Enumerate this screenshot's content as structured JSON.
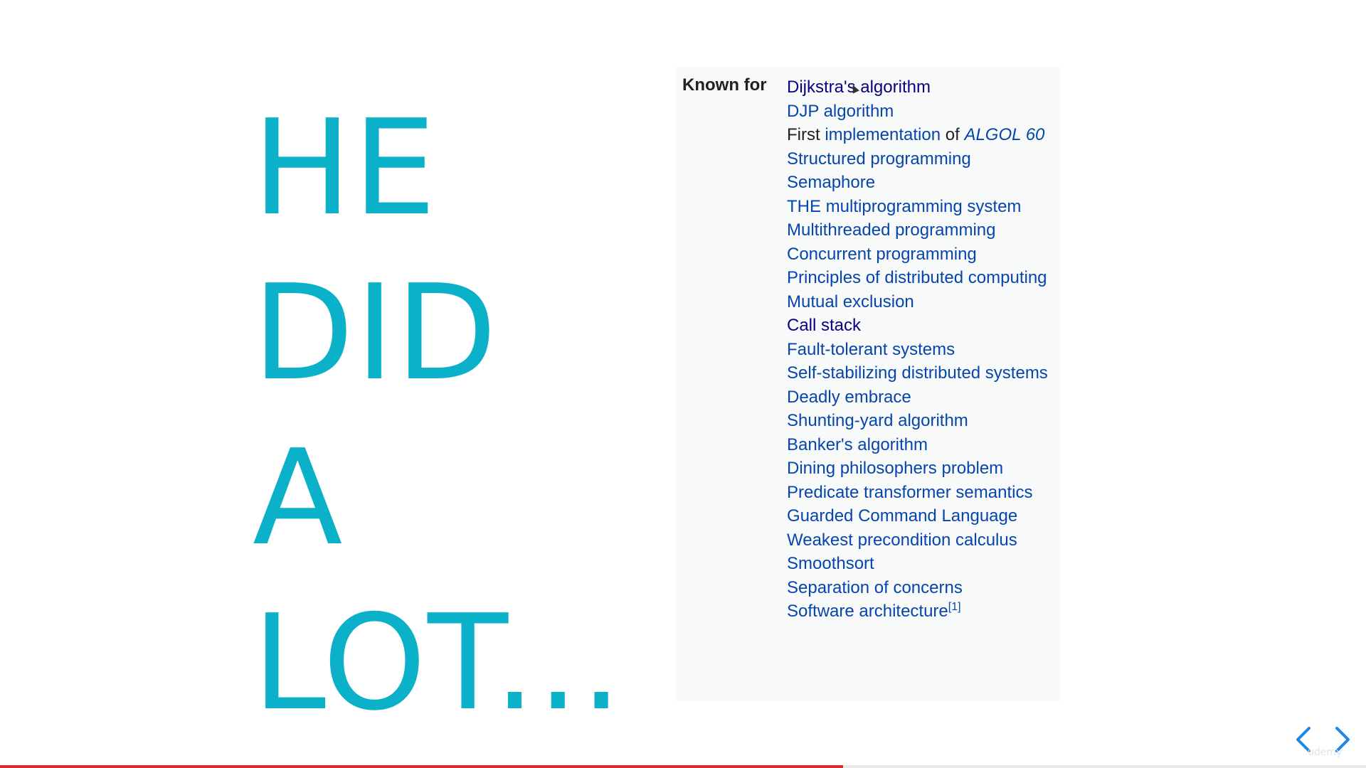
{
  "slide": {
    "big_text_lines": [
      "HE",
      "DID",
      "A",
      "LOT..."
    ]
  },
  "infobox": {
    "label": "Known for",
    "items": [
      {
        "text": "Dijkstra's algorithm",
        "style": "visited"
      },
      {
        "text": "DJP algorithm",
        "style": "link"
      },
      {
        "text_parts": [
          {
            "text": "First ",
            "style": "plain"
          },
          {
            "text": "implementation",
            "style": "link"
          },
          {
            "text": " of ",
            "style": "plain"
          },
          {
            "text": "ALGOL 60",
            "style": "link-italic"
          }
        ]
      },
      {
        "text": "Structured programming",
        "style": "link"
      },
      {
        "text": "Semaphore",
        "style": "link"
      },
      {
        "text": "THE multiprogramming system",
        "style": "link"
      },
      {
        "text": "Multithreaded programming",
        "style": "link"
      },
      {
        "text": "Concurrent programming",
        "style": "link"
      },
      {
        "text": "Principles of distributed computing",
        "style": "link"
      },
      {
        "text": "Mutual exclusion",
        "style": "link"
      },
      {
        "text": "Call stack",
        "style": "visited"
      },
      {
        "text": "Fault-tolerant systems",
        "style": "link"
      },
      {
        "text": "Self-stabilizing distributed systems",
        "style": "link"
      },
      {
        "text": "Deadly embrace",
        "style": "link"
      },
      {
        "text": "Shunting-yard algorithm",
        "style": "link"
      },
      {
        "text": "Banker's algorithm",
        "style": "link"
      },
      {
        "text": "Dining philosophers problem",
        "style": "link"
      },
      {
        "text": "Predicate transformer semantics",
        "style": "link"
      },
      {
        "text": "Guarded Command Language",
        "style": "link"
      },
      {
        "text": "Weakest precondition calculus",
        "style": "link"
      },
      {
        "text": "Smoothsort",
        "style": "link"
      },
      {
        "text": "Separation of concerns",
        "style": "link"
      },
      {
        "text": "Software architecture",
        "style": "link",
        "sup": "[1]"
      }
    ]
  },
  "navigation": {
    "prev_icon": "chevron-left-icon",
    "next_icon": "chevron-right-icon"
  },
  "watermark": "udemy",
  "progress": {
    "fraction": 0.617,
    "fill_color": "#e02a2a"
  },
  "colors": {
    "accent": "#0ab1c8",
    "link": "#0645ad",
    "visited": "#0b0080",
    "text": "#202122",
    "infobox_bg": "#f8f9f9"
  }
}
